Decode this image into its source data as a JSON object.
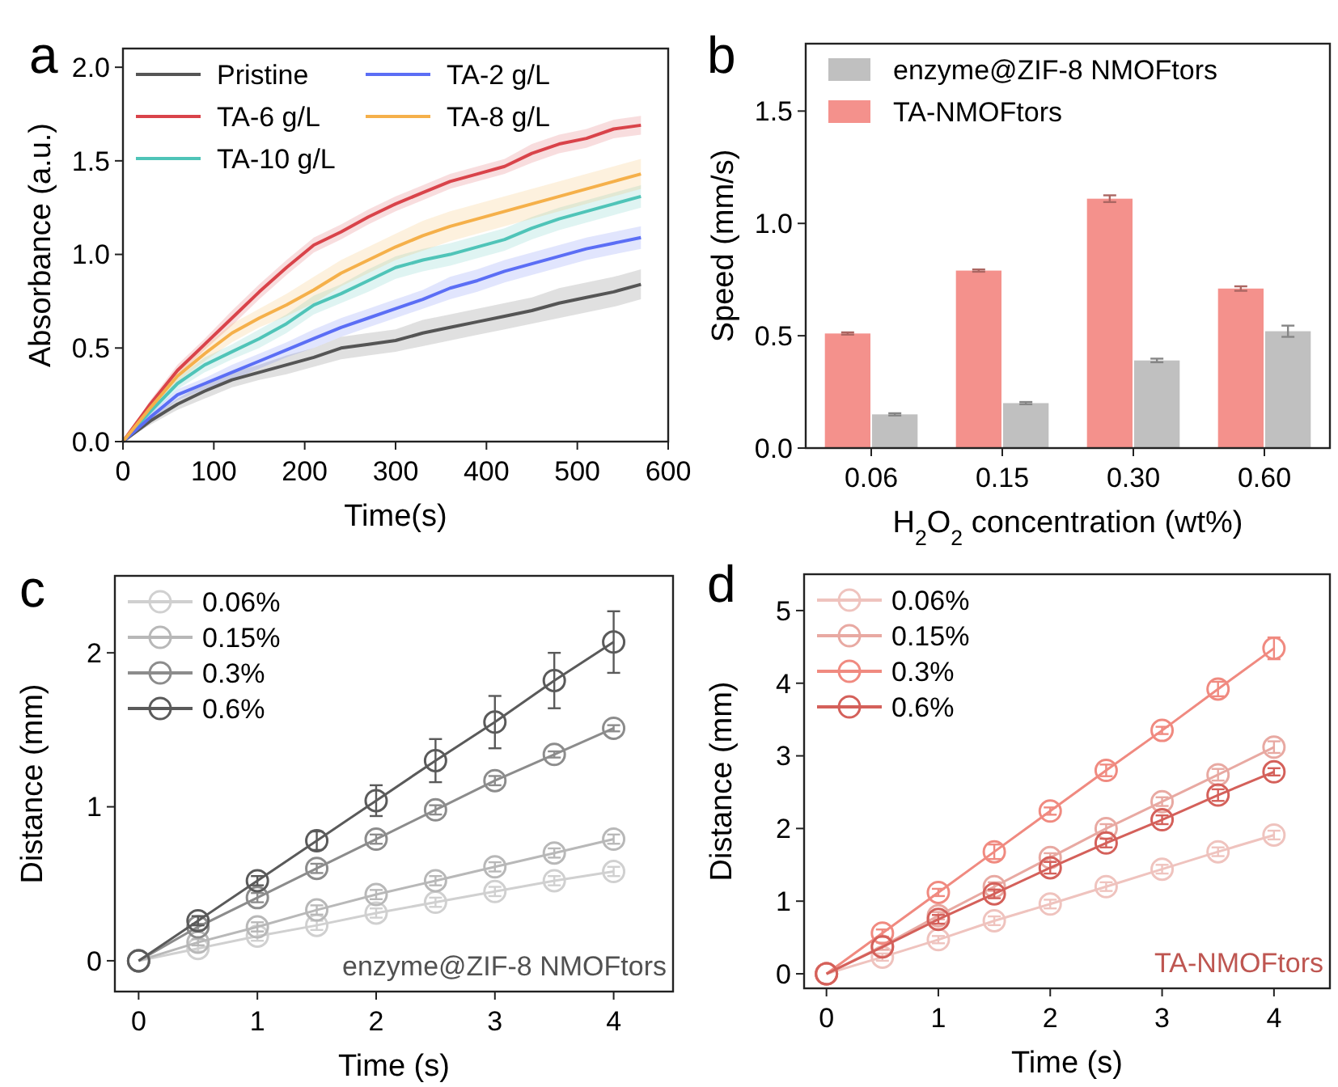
{
  "chart_data": [
    {
      "type": "line",
      "title": "a",
      "xlabel": "Time(s)",
      "ylabel": "Absorbance (a.u.)",
      "xlim": [
        0,
        600
      ],
      "ylim": [
        0,
        2.1
      ],
      "xticks": [
        0,
        100,
        200,
        300,
        400,
        500,
        600
      ],
      "yticks": [
        {
          "value": 0,
          "label": "0.0"
        },
        {
          "value": 0.5,
          "label": "0.5"
        },
        {
          "value": 1,
          "label": "1.0"
        },
        {
          "value": 1.5,
          "label": "1.5"
        },
        {
          "value": 2,
          "label": "2.0"
        }
      ],
      "legend": "top left",
      "grid": false,
      "marker": "none",
      "line_style": "solid",
      "x": [
        0,
        30,
        60,
        90,
        120,
        150,
        180,
        210,
        240,
        270,
        300,
        330,
        360,
        390,
        420,
        450,
        480,
        510,
        540,
        570
      ],
      "series": [
        {
          "name": "Pristine",
          "color": "#555555",
          "values": [
            0,
            0.11,
            0.2,
            0.27,
            0.33,
            0.37,
            0.41,
            0.45,
            0.5,
            0.52,
            0.54,
            0.58,
            0.61,
            0.64,
            0.67,
            0.7,
            0.74,
            0.77,
            0.8,
            0.84
          ],
          "lower": [
            0,
            0.09,
            0.17,
            0.23,
            0.29,
            0.33,
            0.36,
            0.4,
            0.44,
            0.46,
            0.48,
            0.51,
            0.54,
            0.57,
            0.6,
            0.63,
            0.66,
            0.69,
            0.72,
            0.76
          ],
          "upper": [
            0,
            0.13,
            0.23,
            0.31,
            0.37,
            0.41,
            0.46,
            0.5,
            0.56,
            0.58,
            0.6,
            0.65,
            0.68,
            0.71,
            0.74,
            0.77,
            0.82,
            0.85,
            0.88,
            0.92
          ]
        },
        {
          "name": "TA-6 g/L",
          "color": "#d9434a",
          "values": [
            0,
            0.2,
            0.38,
            0.52,
            0.66,
            0.8,
            0.93,
            1.05,
            1.12,
            1.2,
            1.27,
            1.33,
            1.39,
            1.43,
            1.47,
            1.54,
            1.59,
            1.62,
            1.67,
            1.69
          ],
          "lower": [
            0,
            0.18,
            0.35,
            0.49,
            0.62,
            0.76,
            0.89,
            1.01,
            1.08,
            1.16,
            1.23,
            1.29,
            1.35,
            1.39,
            1.43,
            1.49,
            1.54,
            1.57,
            1.62,
            1.64
          ],
          "upper": [
            0,
            0.22,
            0.41,
            0.55,
            0.7,
            0.84,
            0.97,
            1.09,
            1.16,
            1.24,
            1.31,
            1.37,
            1.43,
            1.47,
            1.51,
            1.59,
            1.64,
            1.67,
            1.72,
            1.74
          ]
        },
        {
          "name": "TA-10 g/L",
          "color": "#4fc4b8",
          "values": [
            0,
            0.16,
            0.31,
            0.41,
            0.48,
            0.55,
            0.63,
            0.73,
            0.79,
            0.86,
            0.93,
            0.97,
            1.0,
            1.04,
            1.08,
            1.14,
            1.19,
            1.23,
            1.27,
            1.31
          ],
          "lower": [
            0,
            0.14,
            0.28,
            0.37,
            0.44,
            0.5,
            0.58,
            0.68,
            0.74,
            0.8,
            0.87,
            0.91,
            0.94,
            0.98,
            1.02,
            1.08,
            1.13,
            1.17,
            1.21,
            1.25
          ],
          "upper": [
            0,
            0.18,
            0.34,
            0.45,
            0.52,
            0.6,
            0.68,
            0.78,
            0.84,
            0.92,
            0.99,
            1.03,
            1.06,
            1.1,
            1.14,
            1.2,
            1.25,
            1.29,
            1.33,
            1.37
          ]
        },
        {
          "name": "TA-2 g/L",
          "color": "#5b6ef5",
          "values": [
            0,
            0.13,
            0.25,
            0.31,
            0.37,
            0.43,
            0.49,
            0.55,
            0.61,
            0.66,
            0.71,
            0.76,
            0.82,
            0.86,
            0.91,
            0.95,
            0.99,
            1.03,
            1.06,
            1.09
          ],
          "lower": [
            0,
            0.11,
            0.22,
            0.28,
            0.33,
            0.39,
            0.45,
            0.5,
            0.56,
            0.61,
            0.66,
            0.71,
            0.76,
            0.8,
            0.85,
            0.89,
            0.93,
            0.97,
            1.0,
            1.03
          ],
          "upper": [
            0,
            0.15,
            0.28,
            0.34,
            0.41,
            0.47,
            0.53,
            0.6,
            0.66,
            0.71,
            0.76,
            0.81,
            0.88,
            0.92,
            0.97,
            1.01,
            1.05,
            1.09,
            1.12,
            1.15
          ]
        },
        {
          "name": "TA-8 g/L",
          "color": "#f5b04a",
          "values": [
            0,
            0.18,
            0.35,
            0.47,
            0.58,
            0.66,
            0.73,
            0.81,
            0.9,
            0.97,
            1.04,
            1.1,
            1.15,
            1.19,
            1.23,
            1.27,
            1.31,
            1.35,
            1.39,
            1.43
          ],
          "lower": [
            0,
            0.16,
            0.32,
            0.43,
            0.53,
            0.61,
            0.67,
            0.74,
            0.83,
            0.9,
            0.97,
            1.02,
            1.07,
            1.11,
            1.15,
            1.19,
            1.23,
            1.27,
            1.31,
            1.35
          ],
          "upper": [
            0,
            0.2,
            0.38,
            0.51,
            0.63,
            0.71,
            0.79,
            0.88,
            0.97,
            1.04,
            1.11,
            1.18,
            1.23,
            1.27,
            1.31,
            1.35,
            1.39,
            1.43,
            1.47,
            1.51
          ]
        }
      ]
    },
    {
      "type": "bar",
      "title": "b",
      "xlabel": "H$_{2}$O$_{2}$ concentration (wt%)",
      "ylabel": "Speed (mm/s)",
      "categories": [
        "0.06",
        "0.15",
        "0.30",
        "0.60"
      ],
      "ylim": [
        0,
        1.8
      ],
      "yticks": [
        {
          "value": 0,
          "label": "0.0"
        },
        {
          "value": 0.5,
          "label": "0.5"
        },
        {
          "value": 1,
          "label": "1.0"
        },
        {
          "value": 1.5,
          "label": "1.5"
        }
      ],
      "legend": "top left",
      "grid": false,
      "series": [
        {
          "name": "TA-NMOFtors",
          "color": "#f4918c",
          "values": [
            0.51,
            0.79,
            1.11,
            0.71
          ],
          "errors": [
            0.005,
            0.005,
            0.015,
            0.01
          ]
        },
        {
          "name": "enzyme@ZIF-8 NMOFtors",
          "color": "#c0c0c0",
          "values": [
            0.15,
            0.2,
            0.39,
            0.52
          ],
          "errors": [
            0.005,
            0.005,
            0.008,
            0.025
          ]
        }
      ]
    },
    {
      "type": "line",
      "title": "c",
      "xlabel": "Time (s)",
      "ylabel": "Distance (mm)",
      "xlim": [
        -0.2,
        4.5
      ],
      "ylim": [
        -0.2,
        2.5
      ],
      "xticks": [
        0,
        1,
        2,
        3,
        4
      ],
      "yticks": [
        0,
        1,
        2
      ],
      "legend": "top left",
      "grid": false,
      "marker": "circle",
      "line_style": "solid",
      "annotations": [
        "enzyme@ZIF-8 NMOFtors"
      ],
      "x": [
        0,
        0.5,
        1,
        1.5,
        2,
        2.5,
        3,
        3.5,
        4
      ],
      "series": [
        {
          "name": "0.06%",
          "color": "#d0d0d0",
          "values": [
            0,
            0.08,
            0.16,
            0.23,
            0.31,
            0.38,
            0.45,
            0.52,
            0.58
          ],
          "errors": [
            0,
            0.02,
            0.03,
            0.03,
            0.03,
            0.03,
            0.03,
            0.03,
            0.03
          ]
        },
        {
          "name": "0.15%",
          "color": "#b8b8b8",
          "values": [
            0,
            0.12,
            0.22,
            0.33,
            0.43,
            0.52,
            0.61,
            0.7,
            0.79
          ],
          "errors": [
            0,
            0.02,
            0.03,
            0.03,
            0.03,
            0.03,
            0.03,
            0.03,
            0.03
          ]
        },
        {
          "name": "0.3%",
          "color": "#8c8c8c",
          "values": [
            0,
            0.22,
            0.41,
            0.6,
            0.79,
            0.98,
            1.17,
            1.34,
            1.51
          ],
          "errors": [
            0,
            0.02,
            0.03,
            0.03,
            0.03,
            0.03,
            0.03,
            0.02,
            0.02
          ]
        },
        {
          "name": "0.6%",
          "color": "#5a5a5a",
          "values": [
            0,
            0.26,
            0.52,
            0.78,
            1.04,
            1.3,
            1.55,
            1.82,
            2.07
          ],
          "errors": [
            0,
            0.03,
            0.03,
            0.06,
            0.1,
            0.14,
            0.17,
            0.18,
            0.2
          ]
        }
      ]
    },
    {
      "type": "line",
      "title": "d",
      "xlabel": "Time (s)",
      "ylabel": "Distance (mm)",
      "xlim": [
        -0.2,
        4.5
      ],
      "ylim": [
        -0.2,
        5.5
      ],
      "xticks": [
        0,
        1,
        2,
        3,
        4
      ],
      "yticks": [
        0,
        1,
        2,
        3,
        4,
        5
      ],
      "legend": "top left",
      "grid": false,
      "marker": "circle",
      "line_style": "solid",
      "annotations": [
        "TA-NMOFtors"
      ],
      "x": [
        0,
        0.5,
        1,
        1.5,
        2,
        2.5,
        3,
        3.5,
        4
      ],
      "series": [
        {
          "name": "0.06%",
          "color": "#efc3be",
          "values": [
            0,
            0.23,
            0.47,
            0.73,
            0.96,
            1.2,
            1.44,
            1.68,
            1.91
          ],
          "errors": [
            0,
            0.05,
            0.05,
            0.06,
            0.06,
            0.06,
            0.06,
            0.06,
            0.06
          ]
        },
        {
          "name": "0.15%",
          "color": "#e8a9a2",
          "values": [
            0,
            0.38,
            0.8,
            1.2,
            1.6,
            2.0,
            2.37,
            2.74,
            3.12
          ],
          "errors": [
            0,
            0.05,
            0.05,
            0.06,
            0.06,
            0.06,
            0.06,
            0.08,
            0.08
          ]
        },
        {
          "name": "0.3%",
          "color": "#f08a80",
          "values": [
            0,
            0.56,
            1.12,
            1.68,
            2.24,
            2.8,
            3.35,
            3.92,
            4.48
          ],
          "errors": [
            0,
            0.05,
            0.05,
            0.1,
            0.05,
            0.08,
            0.05,
            0.1,
            0.15
          ]
        },
        {
          "name": "0.6%",
          "color": "#d4605a",
          "values": [
            0,
            0.37,
            0.75,
            1.1,
            1.46,
            1.8,
            2.12,
            2.46,
            2.78
          ],
          "errors": [
            0,
            null,
            0.06,
            0.06,
            0.08,
            0.06,
            0.06,
            0.08,
            0.05
          ]
        }
      ]
    }
  ]
}
